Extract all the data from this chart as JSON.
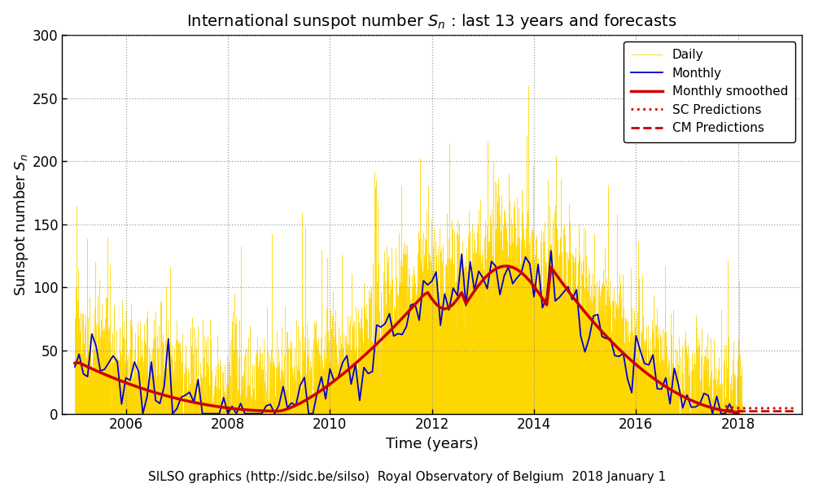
{
  "title": "International sunspot number $S_n$ : last 13 years and forecasts",
  "xlabel": "Time (years)",
  "ylabel": "Sunspot number $S_n$",
  "footer": "SILSO graphics (http://sidc.be/silso)  Royal Observatory of Belgium  2018 January 1",
  "ylim": [
    0,
    300
  ],
  "xlim_start": 2004.75,
  "xlim_end": 2019.25,
  "xticks": [
    2006,
    2008,
    2010,
    2012,
    2014,
    2016,
    2018
  ],
  "yticks": [
    0,
    50,
    100,
    150,
    200,
    250,
    300
  ],
  "daily_color": "#FFD700",
  "monthly_color": "#0000CC",
  "smoothed_color": "#CC0000",
  "pred_sc_color": "#CC0000",
  "pred_cm_color": "#CC0000",
  "background_color": "#FFFFFF",
  "grid_color": "#888888",
  "legend_labels": [
    "Daily",
    "Monthly",
    "Monthly smoothed",
    "SC Predictions",
    "CM Predictions"
  ],
  "title_fontsize": 14,
  "axis_fontsize": 13,
  "tick_fontsize": 12,
  "footer_fontsize": 11
}
